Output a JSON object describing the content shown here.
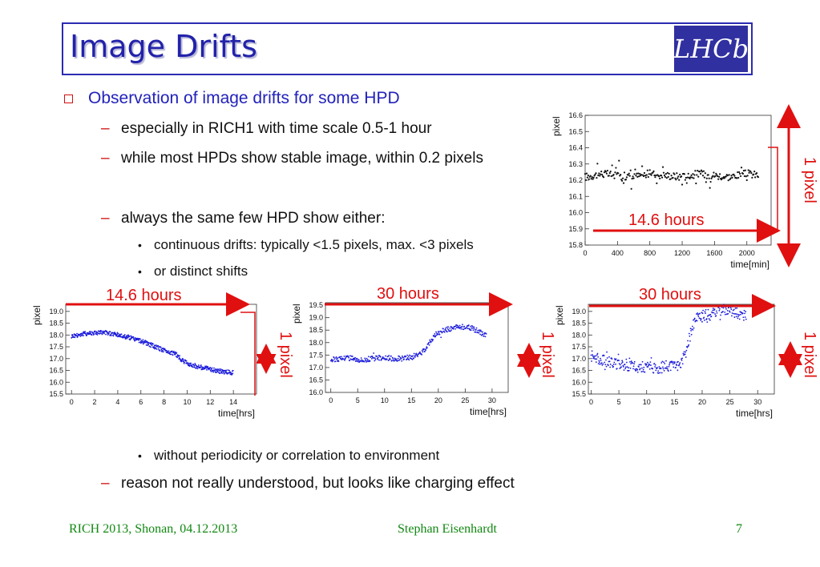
{
  "title": "Image Drifts",
  "logo_text": "LHCb",
  "bullets": {
    "main": "Observation of image drifts for some HPD",
    "sub1": "especially in RICH1 with time scale 0.5-1 hour",
    "sub2": "while most HPDs show stable image, within 0.2 pixels",
    "sub3": "always the same few HPD show either:",
    "sub3a": "continuous drifts: typically <1.5 pixels, max. <3 pixels",
    "sub3b": "or distinct shifts",
    "sub3c": "without periodicity or correlation to environment",
    "sub4": "reason not really understood, but looks like charging effect"
  },
  "annotations": {
    "top_hours": "14.6 hours",
    "top_pixel": "1 pixel",
    "p1_hours": "14.6 hours",
    "p1_pixel": "1 pixel",
    "p2_hours": "30 hours",
    "p2_pixel": "1 pixel",
    "p3_hours": "30 hours",
    "p3_pixel": "1 pixel"
  },
  "colors": {
    "title": "#2222aa",
    "accent_red": "#e01010",
    "footer": "#118811",
    "marker_black": "#111111",
    "marker_blue": "#1a1adc"
  },
  "footer": {
    "left": "RICH 2013, Shonan, 04.12.2013",
    "center": "Stephan Eisenhardt",
    "right": "7"
  },
  "chart_data": [
    {
      "type": "scatter",
      "ylabel": "pixel",
      "xlabel": "time[min]",
      "xlim": [
        0,
        2300
      ],
      "ylim": [
        15.8,
        16.6
      ],
      "xticks": [
        0,
        400,
        800,
        1200,
        1600,
        2000
      ],
      "yticks": [
        "15.8",
        "15.9",
        "16.0",
        "16.1",
        "16.2",
        "16.3",
        "16.4",
        "16.5",
        "16.6"
      ],
      "points": [
        [
          0,
          16.22
        ],
        [
          200,
          16.24
        ],
        [
          400,
          16.23
        ],
        [
          600,
          16.22
        ],
        [
          800,
          16.24
        ],
        [
          1000,
          16.23
        ],
        [
          1200,
          16.22
        ],
        [
          1400,
          16.24
        ],
        [
          1600,
          16.23
        ],
        [
          1800,
          16.22
        ],
        [
          2000,
          16.24
        ],
        [
          2150,
          16.23
        ]
      ]
    },
    {
      "type": "scatter",
      "ylabel": "pixel",
      "xlabel": "time[hrs]",
      "xlim": [
        -0.5,
        16
      ],
      "ylim": [
        15.5,
        19.3
      ],
      "xticks": [
        0,
        2,
        4,
        6,
        8,
        10,
        12,
        14
      ],
      "yticks": [
        "15.5",
        "16.0",
        "16.5",
        "17.0",
        "17.5",
        "18.0",
        "18.5",
        "19.0"
      ],
      "points": [
        [
          0,
          17.95
        ],
        [
          1,
          18.05
        ],
        [
          2,
          18.1
        ],
        [
          3,
          18.1
        ],
        [
          4,
          18.0
        ],
        [
          5,
          17.9
        ],
        [
          6,
          17.75
        ],
        [
          7,
          17.55
        ],
        [
          8,
          17.35
        ],
        [
          9,
          17.2
        ],
        [
          9.5,
          16.95
        ],
        [
          10,
          16.8
        ],
        [
          11,
          16.65
        ],
        [
          12,
          16.55
        ],
        [
          13,
          16.45
        ],
        [
          14,
          16.4
        ]
      ]
    },
    {
      "type": "scatter",
      "ylabel": "pixel",
      "xlabel": "time[hrs]",
      "xlim": [
        -1,
        33
      ],
      "ylim": [
        16.0,
        19.6
      ],
      "xticks": [
        0,
        5,
        10,
        15,
        20,
        25,
        30
      ],
      "yticks": [
        "16.0",
        "16.5",
        "17.0",
        "17.5",
        "18.0",
        "18.5",
        "19.0",
        "19.5"
      ],
      "points": [
        [
          0,
          17.3
        ],
        [
          3,
          17.4
        ],
        [
          6,
          17.3
        ],
        [
          9,
          17.4
        ],
        [
          12,
          17.35
        ],
        [
          15,
          17.4
        ],
        [
          17,
          17.6
        ],
        [
          18,
          17.9
        ],
        [
          19,
          18.2
        ],
        [
          20,
          18.4
        ],
        [
          22,
          18.55
        ],
        [
          24,
          18.65
        ],
        [
          26,
          18.6
        ],
        [
          29,
          18.3
        ]
      ]
    },
    {
      "type": "scatter",
      "ylabel": "pixel",
      "xlabel": "time[hrs]",
      "xlim": [
        -0.5,
        33
      ],
      "ylim": [
        15.5,
        19.3
      ],
      "xticks": [
        0,
        5,
        10,
        15,
        20,
        25,
        30
      ],
      "yticks": [
        "15.5",
        "16.0",
        "16.5",
        "17.0",
        "17.5",
        "18.0",
        "18.5",
        "19.0"
      ],
      "points": [
        [
          0,
          17.1
        ],
        [
          2,
          16.95
        ],
        [
          4,
          16.8
        ],
        [
          6,
          16.7
        ],
        [
          8,
          16.65
        ],
        [
          10,
          16.65
        ],
        [
          12,
          16.6
        ],
        [
          14,
          16.65
        ],
        [
          16,
          16.75
        ],
        [
          17,
          17.2
        ],
        [
          18,
          18.2
        ],
        [
          19,
          18.7
        ],
        [
          20,
          18.8
        ],
        [
          22,
          18.95
        ],
        [
          24,
          19.1
        ],
        [
          26,
          18.95
        ],
        [
          28,
          18.8
        ]
      ]
    }
  ]
}
